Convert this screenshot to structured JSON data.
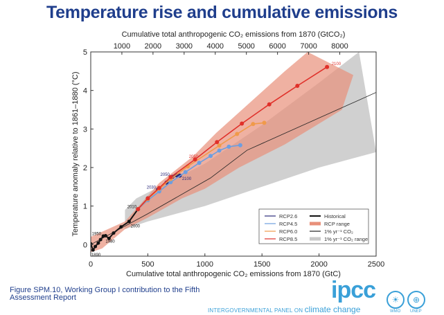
{
  "title": "Temperature rise and cumulative emissions",
  "footer": {
    "caption": "Figure SPM.10, Working Group I contribution to the Fifth Assessment Report",
    "logo_text": "ipcc",
    "logo_subtitle": "INTERGOVERNMENTAL PANEL ON",
    "logo_subtitle2": "climate change",
    "wmo": "WMO",
    "unep": "UNEP"
  },
  "chart_data": {
    "type": "line",
    "xlabel": "Cumulative total anthropogenic CO₂ emissions from 1870 (GtC)",
    "x2label": "Cumulative total anthropogenic CO₂ emissions from 1870 (GtCO₂)",
    "ylabel": "Temperature anomaly relative to 1861–1880 (°C)",
    "xlim": [
      0,
      2500
    ],
    "ylim": [
      -0.3,
      5
    ],
    "xticks": [
      0,
      500,
      1000,
      1500,
      2000,
      2500
    ],
    "x2ticks": [
      1000,
      2000,
      3000,
      4000,
      5000,
      6000,
      7000,
      8000
    ],
    "yticks": [
      0,
      1,
      2,
      3,
      4,
      5
    ],
    "legend_position": "bottom-right",
    "series": [
      {
        "name": "Historical",
        "color": "#111111",
        "x": [
          0,
          20,
          40,
          66,
          86,
          110,
          130,
          160,
          200,
          266,
          336,
          414
        ],
        "y": [
          0.02,
          -0.14,
          -0.05,
          0.04,
          0.13,
          0.22,
          0.23,
          0.16,
          0.3,
          0.46,
          0.6,
          0.92
        ]
      },
      {
        "name": "RCP2.6",
        "color": "#2b2a7a",
        "x": [
          414,
          500,
          590,
          664,
          716,
          750,
          780
        ],
        "y": [
          0.92,
          1.2,
          1.43,
          1.61,
          1.76,
          1.8,
          1.79
        ]
      },
      {
        "name": "RCP4.5",
        "color": "#6d9ee0",
        "x": [
          414,
          500,
          600,
          700,
          830,
          950,
          1050,
          1126,
          1210,
          1310
        ],
        "y": [
          0.92,
          1.15,
          1.38,
          1.62,
          1.88,
          2.12,
          2.3,
          2.44,
          2.54,
          2.58
        ]
      },
      {
        "name": "RCP6.0",
        "color": "#f09a4a",
        "x": [
          414,
          500,
          600,
          700,
          850,
          1126,
          1282,
          1422,
          1520
        ],
        "y": [
          0.92,
          1.18,
          1.45,
          1.7,
          2.03,
          2.57,
          2.87,
          3.13,
          3.16
        ]
      },
      {
        "name": "RCP8.5",
        "color": "#e0302a",
        "x": [
          414,
          500,
          600,
          700,
          914,
          1106,
          1324,
          1564,
          1810,
          2070
        ],
        "y": [
          0.92,
          1.2,
          1.47,
          1.75,
          2.21,
          2.66,
          3.14,
          3.64,
          4.12,
          4.61
        ]
      },
      {
        "name": "1% yr⁻¹ CO₂",
        "color": "#222222",
        "x": [
          0,
          500,
          1050,
          1370,
          2500
        ],
        "y": [
          0,
          0.8,
          1.73,
          2.45,
          3.95
        ]
      }
    ],
    "ranges": [
      {
        "name": "1% yr⁻¹ CO₂ range",
        "color": "#c8c8c8",
        "upper": [
          [
            300,
            0.9
          ],
          [
            400,
            1.2
          ],
          [
            1000,
            2.1
          ],
          [
            1500,
            3.1
          ],
          [
            2000,
            4.2
          ],
          [
            2350,
            5
          ]
        ],
        "lower": [
          [
            2500,
            2.4
          ],
          [
            2000,
            2.0
          ],
          [
            1500,
            1.5
          ],
          [
            1000,
            1.0
          ],
          [
            500,
            0.6
          ],
          [
            300,
            0.4
          ]
        ]
      },
      {
        "name": "RCP range",
        "color": "#e8907a",
        "upper": [
          [
            0,
            0.2
          ],
          [
            300,
            0.6
          ],
          [
            600,
            1.6
          ],
          [
            900,
            2.3
          ],
          [
            1100,
            2.9
          ],
          [
            1400,
            3.7
          ],
          [
            1700,
            4.5
          ],
          [
            1900,
            5
          ]
        ],
        "lower": [
          [
            2300,
            4.4
          ],
          [
            2200,
            3.5
          ],
          [
            1700,
            2.6
          ],
          [
            1300,
            2.0
          ],
          [
            1000,
            1.45
          ],
          [
            800,
            1.2
          ],
          [
            500,
            0.7
          ],
          [
            300,
            0.4
          ],
          [
            100,
            -0.1
          ],
          [
            0,
            -0.2
          ]
        ]
      }
    ],
    "annotations": [
      {
        "text": "1890",
        "x": 5,
        "y": -0.3,
        "color": "#111"
      },
      {
        "text": "1950",
        "x": 10,
        "y": 0.25,
        "color": "#111"
      },
      {
        "text": "1980",
        "x": 130,
        "y": 0.05,
        "color": "#111"
      },
      {
        "text": "2000",
        "x": 350,
        "y": 0.45,
        "color": "#111"
      },
      {
        "text": "2010",
        "x": 320,
        "y": 0.95,
        "color": "#111"
      },
      {
        "text": "2030",
        "x": 490,
        "y": 1.45,
        "color": "#2b2a7a"
      },
      {
        "text": "2050",
        "x": 610,
        "y": 1.78,
        "color": "#2b2a7a"
      },
      {
        "text": "2100",
        "x": 800,
        "y": 1.68,
        "color": "#2b2a7a"
      },
      {
        "text": "2050",
        "x": 860,
        "y": 2.25,
        "color": "#e0302a"
      },
      {
        "text": "2100",
        "x": 2110,
        "y": 4.66,
        "color": "#e0302a"
      }
    ],
    "legend": [
      "RCP2.6",
      "RCP4.5",
      "RCP6.0",
      "RCP8.5",
      "Historical",
      "RCP range",
      "1% yr⁻¹ CO₂",
      "1% yr⁻¹ CO₂ range"
    ]
  }
}
